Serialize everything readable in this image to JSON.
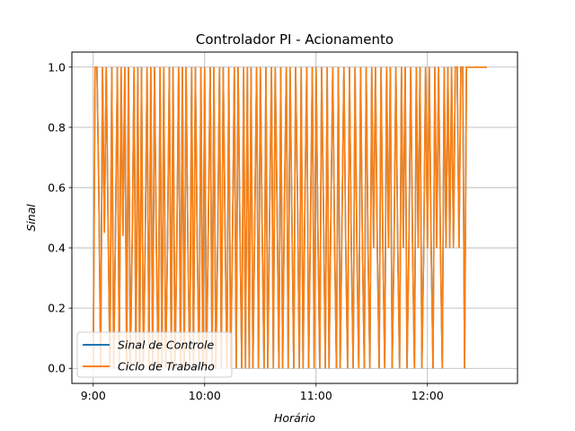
{
  "chart_data": {
    "type": "line",
    "title": "Controlador PI - Acionamento",
    "xlabel": "Horário",
    "ylabel": "Sinal",
    "x_ticks": [
      "9:00",
      "10:00",
      "11:00",
      "12:00"
    ],
    "x_tick_minutes": [
      0,
      60,
      120,
      180
    ],
    "xlim_minutes": [
      -11.5,
      228.5
    ],
    "y_ticks": [
      "0.0",
      "0.2",
      "0.4",
      "0.6",
      "0.8",
      "1.0"
    ],
    "ylim": [
      -0.05,
      1.05
    ],
    "grid": true,
    "legend_position": "lower-left",
    "x_start": "9:00",
    "x_step_minutes": 1,
    "series": [
      {
        "name": "Sinal de Controle",
        "color": "#1f77b4",
        "values": [
          0,
          1,
          1,
          0.6,
          0,
          1,
          0.45,
          1,
          0.48,
          0,
          1,
          0,
          0.46,
          1,
          0,
          1,
          0.44,
          1,
          0,
          1,
          0,
          0.43,
          1,
          0,
          1,
          0,
          1,
          0,
          0.42,
          1,
          0,
          1,
          0,
          1,
          0.41,
          0,
          1,
          0,
          1,
          0,
          0.41,
          1,
          0,
          1,
          0,
          0.4,
          1,
          0,
          1,
          0,
          1,
          0.4,
          0,
          1,
          0,
          1,
          0.42,
          0,
          1,
          0,
          1,
          0,
          0.48,
          1,
          0,
          1,
          0,
          0.4,
          1,
          0,
          1,
          0.46,
          0,
          1,
          0,
          0.43,
          1,
          0,
          1,
          0.47,
          0,
          1,
          0,
          1,
          0,
          1,
          0,
          0.49,
          1,
          0,
          1,
          0.45,
          0,
          1,
          0,
          0.51,
          1,
          0,
          1,
          0.54,
          0,
          1,
          0,
          0.56,
          1,
          0,
          1,
          0.5,
          0,
          1,
          0.58,
          0,
          1,
          0,
          0.55,
          1,
          0,
          0.48,
          1,
          0,
          1,
          0.46,
          0,
          1,
          0.53,
          0,
          1,
          0,
          0.51,
          1,
          0.41,
          0,
          1,
          0,
          0.5,
          1,
          0.4,
          0,
          1,
          0.4,
          0,
          1,
          0.4,
          0,
          1,
          0.4,
          0,
          1,
          0.4,
          0,
          1,
          0.4,
          1,
          0.4,
          0,
          1,
          0.4,
          0,
          1,
          0.4,
          1,
          0,
          0.4,
          1,
          0.4,
          0,
          1,
          0.4,
          1,
          0,
          0.4,
          1,
          0.4,
          0,
          1,
          0.4,
          1,
          0,
          0.4,
          1,
          0.4,
          1,
          0.4,
          0,
          1,
          0.4,
          1,
          0.4,
          0,
          1,
          0.4,
          1,
          0.4,
          1,
          0.4,
          1,
          1,
          0.4,
          1,
          1,
          0,
          1,
          1,
          1,
          1,
          1,
          1,
          1,
          1,
          1,
          1,
          1,
          1
        ]
      },
      {
        "name": "Ciclo de Trabalho",
        "color": "#ff7f0e",
        "values": [
          0,
          1,
          1,
          0.6,
          0,
          1,
          0.45,
          1,
          0.48,
          0,
          1,
          0,
          0.46,
          1,
          0,
          1,
          0.44,
          1,
          0,
          1,
          0,
          0.43,
          1,
          0,
          1,
          0,
          1,
          0,
          0.42,
          1,
          0,
          1,
          0,
          1,
          0.41,
          0,
          1,
          0,
          1,
          0,
          0.41,
          1,
          0,
          1,
          0,
          0.4,
          1,
          0,
          1,
          0,
          1,
          0.4,
          0,
          1,
          0,
          1,
          0.42,
          0,
          1,
          0,
          1,
          0,
          0.48,
          1,
          0,
          1,
          0,
          0.4,
          1,
          0,
          1,
          0.46,
          0,
          1,
          0,
          0.43,
          1,
          0,
          1,
          0.47,
          0,
          1,
          0,
          1,
          0,
          1,
          0,
          0.49,
          1,
          0,
          1,
          0.45,
          0,
          1,
          0,
          0.51,
          1,
          0,
          1,
          0.54,
          0,
          1,
          0,
          0.56,
          1,
          0,
          1,
          0.5,
          0,
          1,
          0.58,
          0,
          1,
          0,
          0.55,
          1,
          0,
          0.48,
          1,
          0,
          1,
          0.46,
          0,
          1,
          0.53,
          0,
          1,
          0,
          0.51,
          1,
          0.41,
          0,
          1,
          0,
          0.5,
          1,
          0.4,
          0,
          1,
          0.4,
          0,
          1,
          0.4,
          0,
          1,
          0.4,
          0,
          1,
          0.4,
          0,
          1,
          0.4,
          1,
          0.4,
          0,
          1,
          0.4,
          0,
          1,
          0.4,
          1,
          0,
          0.4,
          1,
          0.4,
          0,
          1,
          0.4,
          1,
          0,
          0.4,
          1,
          0.4,
          0,
          1,
          0.4,
          1,
          0,
          0.4,
          1,
          0.4,
          1,
          0.4,
          0,
          1,
          0.4,
          1,
          0.4,
          0,
          1,
          0.4,
          1,
          0.4,
          1,
          0.4,
          1,
          1,
          0.4,
          1,
          1,
          0,
          1,
          1,
          1,
          1,
          1,
          1,
          1,
          1,
          1,
          1,
          1,
          1
        ]
      }
    ]
  }
}
